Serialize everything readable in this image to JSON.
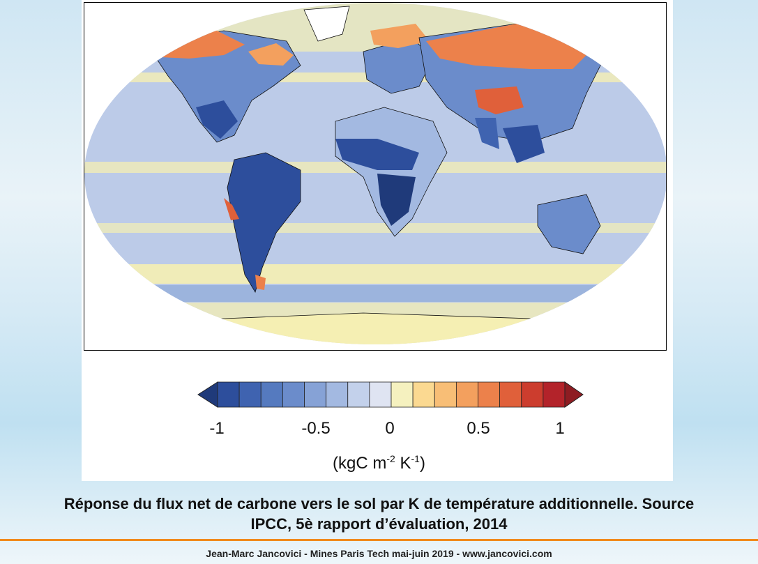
{
  "map": {
    "colors": {
      "ocean_base": "#bccbe8",
      "deep_blue": "#23438f",
      "mid_blue": "#4f73b8",
      "light_blue": "#8fa9d9",
      "pale_yellow": "#f5efb3",
      "orange": "#f1a05c",
      "red_orange": "#e4623f"
    }
  },
  "colorbar": {
    "ticks": [
      "-1",
      "-0.5",
      "0",
      "0.5",
      "1"
    ],
    "colors": [
      "#1f3a7a",
      "#2d4e9c",
      "#3f63b0",
      "#557abf",
      "#6b8ccb",
      "#86a2d6",
      "#a3b9e1",
      "#c3d1eb",
      "#dfe4f2",
      "#f5f1bf",
      "#fbd991",
      "#f8be76",
      "#f3a05e",
      "#ec814b",
      "#e0603a",
      "#cc3d2e",
      "#b3232a",
      "#8e1c22"
    ],
    "unit_prefix": "(kgC m",
    "unit_exp1": "-2",
    "unit_mid": " K",
    "unit_exp2": "-1",
    "unit_suffix": ")"
  },
  "caption": {
    "line1": "Réponse du flux net de carbone vers le sol par K de température additionnelle. Source",
    "line2": "IPCC, 5è rapport d’évaluation, 2014"
  },
  "footer": {
    "text": "Jean-Marc Jancovici - Mines Paris Tech mai-juin 2019 - www.jancovici.com"
  }
}
